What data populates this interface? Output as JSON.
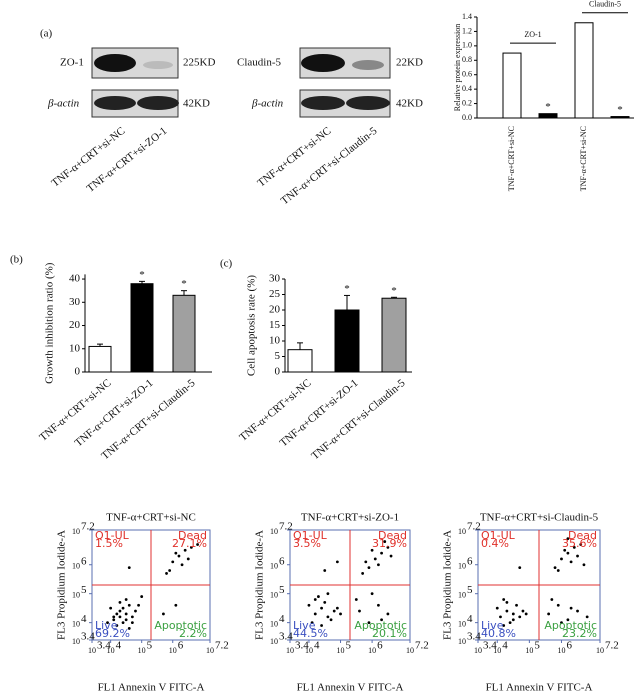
{
  "panels": [
    "(a)",
    "(b)",
    "(c)"
  ],
  "blots": {
    "zo1": {
      "label": "ZO-1",
      "size": "225KD",
      "actin_label": "β-actin",
      "actin_size": "42KD"
    },
    "claudin": {
      "label": "Claudin-5",
      "size": "22KD",
      "actin_label": "β-actin",
      "actin_size": "42KD"
    },
    "lanes": [
      "TNF-α+CRT+si-NC",
      "TNF-α+CRT+si-ZO-1",
      "TNF-α+CRT+si-NC",
      "TNF-α+CRT+si-Claudin-5"
    ]
  },
  "chart_data": [
    {
      "type": "bar",
      "ylabel": "Relative protein expression",
      "categories": [
        "TNF-α+CRT+si-NC",
        null,
        "TNF-α+CRT+si-NC",
        null
      ],
      "values": [
        0.9,
        0.06,
        1.32,
        0.02
      ],
      "colors": [
        "#ffffff",
        "#000000",
        "#ffffff",
        "#000000"
      ],
      "annotations": [
        null,
        "*",
        null,
        "*"
      ],
      "group_labels": [
        "ZO-1",
        "Claudin-5"
      ],
      "ylim": [
        0,
        1.4
      ],
      "yticks": [
        {
          "value": 0,
          "label": "0.0"
        },
        0.2,
        0.4,
        0.6,
        0.8,
        {
          "value": 1,
          "label": "1.0"
        },
        1.2,
        1.4
      ]
    },
    {
      "type": "bar",
      "ylabel": "Growth inhibition ratio (%)",
      "categories": [
        "TNF-α+CRT+si-NC",
        "TNF-α+CRT+si-ZO-1",
        "TNF-α+CRT+si-Claudin-5"
      ],
      "values": [
        11,
        38,
        33
      ],
      "errors": [
        1,
        1,
        2
      ],
      "colors": [
        "#ffffff",
        "#000000",
        "#a0a0a0"
      ],
      "annotations": [
        null,
        "*",
        "*"
      ],
      "ylim": [
        0,
        42
      ],
      "yticks": [
        0,
        10,
        20,
        30,
        40
      ]
    },
    {
      "type": "bar",
      "ylabel": "Cell apoptosis rate (%)",
      "categories": [
        "TNF-α+CRT+si-NC",
        "TNF-α+CRT+si-ZO-1",
        "TNF-α+CRT+si-Claudin-5"
      ],
      "values": [
        7.2,
        20,
        23.8
      ],
      "errors": [
        2.2,
        4.7,
        0.3
      ],
      "colors": [
        "#ffffff",
        "#000000",
        "#a0a0a0"
      ],
      "annotations": [
        null,
        "*",
        "*"
      ],
      "ylim": [
        0,
        30
      ],
      "yticks": [
        0,
        5,
        10,
        15,
        20,
        25,
        30
      ]
    },
    {
      "type": "scatter",
      "title": "TNF-α+CRT+si-NC",
      "xlabel": "FL1 Annexin V FITC-A",
      "ylabel": "FL3 Propidium Iodide-A",
      "color": "#000000",
      "gate": [
        5.3,
        5.3
      ],
      "gate_color": "#e03030",
      "quadrants": {
        "names": [
          "Q1-UL",
          "Dead",
          "Live",
          "Apoptotic"
        ],
        "values": [
          1.5,
          27.1,
          69.2,
          2.2
        ],
        "value_labels": [
          "1.5%",
          "27.1%",
          "69.2%",
          "2.2%"
        ],
        "colors": [
          "#e0302a",
          "#e0302a",
          "#3a4fc0",
          "#3aa040"
        ]
      },
      "xlim": [
        3.4,
        7.2
      ],
      "ylim": [
        3.4,
        7.2
      ],
      "xticks": [
        {
          "value": 3.4,
          "label": "10"
        },
        {
          "value": 4,
          "label": "10"
        },
        {
          "value": 5,
          "label": "10"
        },
        {
          "value": 6,
          "label": "10"
        },
        {
          "value": 7.2,
          "label": "10"
        }
      ],
      "yticks": [
        {
          "value": 3.4,
          "label": "10"
        },
        {
          "value": 4,
          "label": "10"
        },
        {
          "value": 5,
          "label": "10"
        },
        {
          "value": 6,
          "label": "10"
        },
        {
          "value": 7.2,
          "label": "10"
        }
      ],
      "x": [
        4.1,
        4.3,
        4.5,
        4.2,
        4.6,
        4.4,
        4.0,
        4.8,
        4.3,
        4.5,
        4.7,
        4.2,
        3.9,
        4.4,
        4.6,
        4.9,
        4.1,
        4.5,
        4.3,
        4.7,
        6.0,
        6.2,
        6.4,
        5.9,
        6.3,
        6.6,
        6.1,
        6.5,
        5.8,
        6.8,
        5.7,
        6.1,
        4.6,
        5.0
      ],
      "y": [
        4.2,
        4.4,
        4.3,
        3.9,
        4.6,
        4.0,
        4.5,
        4.4,
        4.7,
        4.1,
        4.2,
        4.3,
        4.0,
        4.5,
        3.8,
        4.6,
        4.1,
        4.8,
        4.2,
        4.0,
        6.1,
        6.3,
        6.5,
        5.8,
        6.0,
        6.6,
        6.4,
        6.2,
        5.7,
        6.7,
        4.3,
        4.6,
        5.9,
        4.9
      ]
    },
    {
      "type": "scatter",
      "title": "TNF-α+CRT+si-ZO-1",
      "xlabel": "FL1 Annexin V FITC-A",
      "ylabel": "FL3 Propidium Iodide-A",
      "color": "#000000",
      "gate": [
        5.3,
        5.3
      ],
      "gate_color": "#e03030",
      "quadrants": {
        "names": [
          "Q1-UL",
          "Dead",
          "Live",
          "Apoptotic"
        ],
        "values": [
          3.5,
          31.9,
          44.5,
          20.1
        ],
        "value_labels": [
          "3.5%",
          "31.9%",
          "44.5%",
          "20.1%"
        ],
        "colors": [
          "#e0302a",
          "#e0302a",
          "#3a4fc0",
          "#3aa040"
        ]
      },
      "xlim": [
        3.4,
        7.2
      ],
      "ylim": [
        3.4,
        7.2
      ],
      "xticks": [
        {
          "value": 3.4,
          "label": "10"
        },
        {
          "value": 4,
          "label": "10"
        },
        {
          "value": 5,
          "label": "10"
        },
        {
          "value": 6,
          "label": "10"
        },
        {
          "value": 7.2,
          "label": "10"
        }
      ],
      "yticks": [
        {
          "value": 3.4,
          "label": "10"
        },
        {
          "value": 4,
          "label": "10"
        },
        {
          "value": 5,
          "label": "10"
        },
        {
          "value": 6,
          "label": "10"
        },
        {
          "value": 7.2,
          "label": "10"
        }
      ],
      "x": [
        4.2,
        4.4,
        4.6,
        4.1,
        4.5,
        4.8,
        4.3,
        4.7,
        4.0,
        4.9,
        4.4,
        4.6,
        5.0,
        4.2,
        5.9,
        6.1,
        6.3,
        5.7,
        6.5,
        6.2,
        6.0,
        6.6,
        5.8,
        6.4,
        5.6,
        5.9,
        6.2,
        6.5,
        5.5,
        6.0,
        6.3,
        4.5,
        4.9
      ],
      "y": [
        4.3,
        4.5,
        4.2,
        4.0,
        4.7,
        4.4,
        4.9,
        4.1,
        4.6,
        4.5,
        3.9,
        5.0,
        4.3,
        4.8,
        5.9,
        6.2,
        6.4,
        5.7,
        6.6,
        6.0,
        6.5,
        6.3,
        6.1,
        6.8,
        4.4,
        4.0,
        4.6,
        4.3,
        4.8,
        5.0,
        4.1,
        5.8,
        6.1
      ]
    },
    {
      "type": "scatter",
      "title": "TNF-α+CRT+si-Claudin-5",
      "xlabel": "FL1 Annexin V FITC-A",
      "ylabel": "FL3 Propidium Iodide-A",
      "color": "#000000",
      "gate": [
        5.3,
        5.3
      ],
      "gate_color": "#e03030",
      "quadrants": {
        "names": [
          "Q1-UL",
          "Dead",
          "Live",
          "Apoptotic"
        ],
        "values": [
          0.4,
          35.6,
          40.8,
          23.2
        ],
        "value_labels": [
          "0.4%",
          "35.6%",
          "40.8%",
          "23.2%"
        ],
        "colors": [
          "#e0302a",
          "#e0302a",
          "#3a4fc0",
          "#3aa040"
        ]
      },
      "xlim": [
        3.4,
        7.2
      ],
      "ylim": [
        3.4,
        7.2
      ],
      "xticks": [
        {
          "value": 3.4,
          "label": "10"
        },
        {
          "value": 4,
          "label": "10"
        },
        {
          "value": 5,
          "label": "10"
        },
        {
          "value": 6,
          "label": "10"
        },
        {
          "value": 7.2,
          "label": "10"
        }
      ],
      "yticks": [
        {
          "value": 3.4,
          "label": "10"
        },
        {
          "value": 4,
          "label": "10"
        },
        {
          "value": 5,
          "label": "10"
        },
        {
          "value": 6,
          "label": "10"
        },
        {
          "value": 7.2,
          "label": "10"
        }
      ],
      "x": [
        4.1,
        4.3,
        4.5,
        4.2,
        4.6,
        4.4,
        4.0,
        4.8,
        4.3,
        4.5,
        4.7,
        4.2,
        4.9,
        6.0,
        6.2,
        6.4,
        5.8,
        6.3,
        6.6,
        6.1,
        6.5,
        5.9,
        6.7,
        6.2,
        5.6,
        5.9,
        6.2,
        6.5,
        5.7,
        6.0,
        6.3,
        6.8,
        4.7
      ],
      "y": [
        4.2,
        4.4,
        4.3,
        3.9,
        4.6,
        4.0,
        4.5,
        4.4,
        4.7,
        4.1,
        4.2,
        4.8,
        4.3,
        6.2,
        6.4,
        6.6,
        5.9,
        6.1,
        6.7,
        6.5,
        6.3,
        5.8,
        6.0,
        6.9,
        4.3,
        4.6,
        4.1,
        4.4,
        4.8,
        4.0,
        4.5,
        4.2,
        5.9
      ]
    }
  ]
}
